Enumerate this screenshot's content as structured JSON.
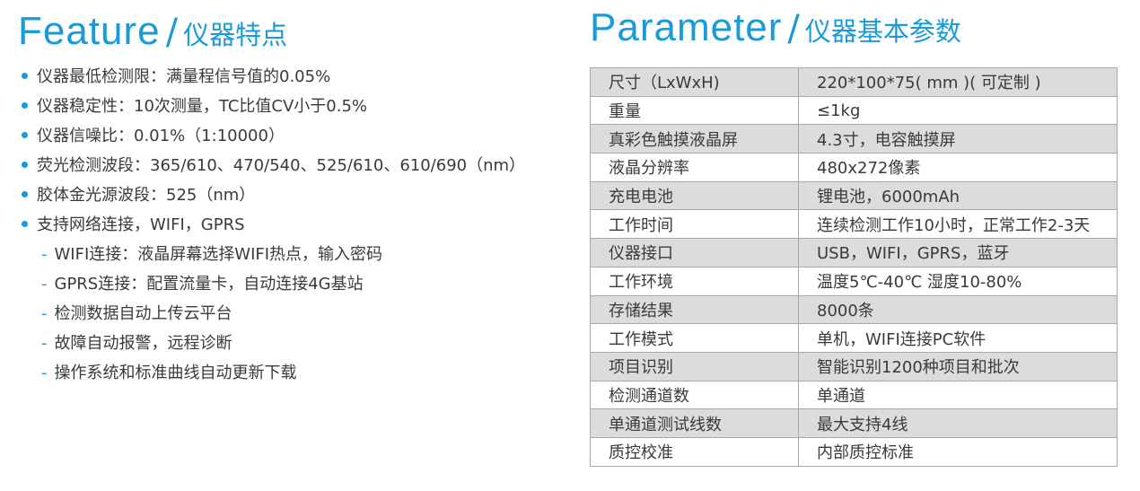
{
  "feature": {
    "title_en": "Feature",
    "slash": "/",
    "title_cn": "仪器特点",
    "items": [
      "仪器最低检测限：满量程信号值的0.05%",
      "仪器稳定性：10次测量，TC比值CV小于0.5%",
      "仪器信噪比：0.01%（1:10000）",
      "荧光检测波段：365/610、470/540、525/610、610/690（nm）",
      "胶体金光源波段：525（nm）",
      "支持网络连接，WIFI，GPRS"
    ],
    "sub_items": [
      "WIFI连接：液晶屏幕选择WIFI热点，输入密码",
      "GPRS连接：配置流量卡，自动连接4G基站",
      "检测数据自动上传云平台",
      "故障自动报警，远程诊断",
      "操作系统和标准曲线自动更新下载"
    ],
    "dash": "-"
  },
  "parameter": {
    "title_en": "Parameter",
    "slash": "/",
    "title_cn": "仪器基本参数",
    "rows": [
      [
        "尺寸（LxWxH)",
        "220*100*75( mm )( 可定制 )"
      ],
      [
        "重量",
        "≤1kg"
      ],
      [
        "真彩色触摸液晶屏",
        "4.3寸，电容触摸屏"
      ],
      [
        "液晶分辨率",
        "480x272像素"
      ],
      [
        "充电电池",
        "锂电池，6000mAh"
      ],
      [
        "工作时间",
        "连续检测工作10小时，正常工作2-3天"
      ],
      [
        "仪器接口",
        "USB，WIFI，GPRS，蓝牙"
      ],
      [
        "工作环境",
        "温度5℃-40℃  湿度10-80%"
      ],
      [
        "存储结果",
        "8000条"
      ],
      [
        "工作模式",
        "单机，WIFI连接PC软件"
      ],
      [
        "项目识别",
        "智能识别1200种项目和批次"
      ],
      [
        "检测通道数",
        "单通道"
      ],
      [
        "单通道测试线数",
        "最大支持4线"
      ],
      [
        "质控校准",
        "内部质控标准"
      ]
    ]
  },
  "colors": {
    "accent": "#1a9ad6",
    "row_shade": "#dcdcdc"
  }
}
